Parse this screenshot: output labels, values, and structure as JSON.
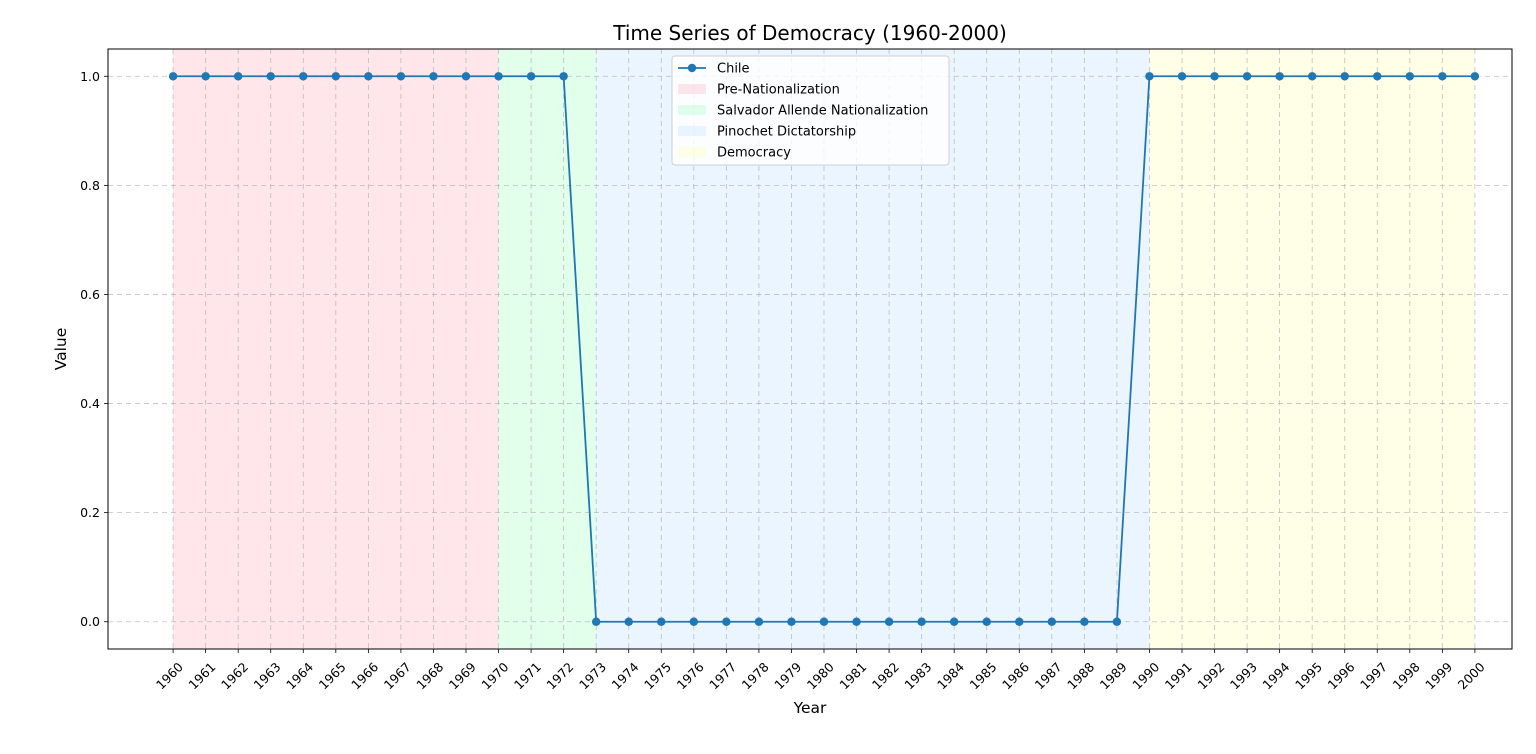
{
  "chart_data": {
    "type": "line",
    "title": "Time Series of Democracy (1960-2000)",
    "xlabel": "Year",
    "ylabel": "Value",
    "xlim": [
      1958,
      2001.14
    ],
    "ylim": [
      -0.05,
      1.05
    ],
    "yticks": [
      "0.0",
      "0.2",
      "0.4",
      "0.6",
      "0.8",
      "1.0"
    ],
    "ytick_values": [
      0,
      0.2,
      0.4,
      0.6,
      0.8,
      1.0
    ],
    "x": [
      1960,
      1961,
      1962,
      1963,
      1964,
      1965,
      1966,
      1967,
      1968,
      1969,
      1970,
      1971,
      1972,
      1973,
      1974,
      1975,
      1976,
      1977,
      1978,
      1979,
      1980,
      1981,
      1982,
      1983,
      1984,
      1985,
      1986,
      1987,
      1988,
      1989,
      1990,
      1991,
      1992,
      1993,
      1994,
      1995,
      1996,
      1997,
      1998,
      1999,
      2000
    ],
    "xtick_labels": [
      "1960",
      "1961",
      "1962",
      "1963",
      "1964",
      "1965",
      "1966",
      "1967",
      "1968",
      "1969",
      "1970",
      "1971",
      "1972",
      "1973",
      "1974",
      "1975",
      "1976",
      "1977",
      "1978",
      "1979",
      "1980",
      "1981",
      "1982",
      "1983",
      "1984",
      "1985",
      "1986",
      "1987",
      "1988",
      "1989",
      "1990",
      "1991",
      "1992",
      "1993",
      "1994",
      "1995",
      "1996",
      "1997",
      "1998",
      "1999",
      "2000"
    ],
    "series": [
      {
        "name": "Chile",
        "color": "#1f77b4",
        "values": [
          1,
          1,
          1,
          1,
          1,
          1,
          1,
          1,
          1,
          1,
          1,
          1,
          1,
          0,
          0,
          0,
          0,
          0,
          0,
          0,
          0,
          0,
          0,
          0,
          0,
          0,
          0,
          0,
          0,
          0,
          1,
          1,
          1,
          1,
          1,
          1,
          1,
          1,
          1,
          1,
          1
        ]
      }
    ],
    "periods": [
      {
        "name": "Pre-Nationalization",
        "start": 1960,
        "end": 1970,
        "color": "#ffc0cb"
      },
      {
        "name": "Salvador Allende Nationalization",
        "start": 1970,
        "end": 1973,
        "color": "#b3ffcc"
      },
      {
        "name": "Pinochet Dictatorship",
        "start": 1973,
        "end": 1990,
        "color": "#cce6ff"
      },
      {
        "name": "Democracy",
        "start": 1990,
        "end": 2000,
        "color": "#ffffc2"
      }
    ],
    "grid": true,
    "legend_position": "upper center"
  }
}
